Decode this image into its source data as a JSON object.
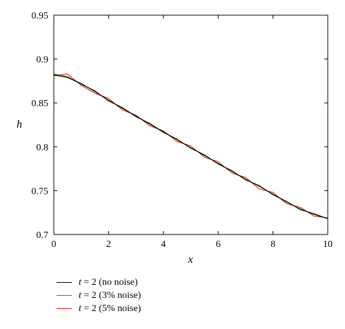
{
  "chart_data": {
    "type": "line",
    "xlabel": "x",
    "ylabel": "h",
    "xlim": [
      0,
      10
    ],
    "ylim": [
      0.7,
      0.95
    ],
    "xticks": [
      "0",
      "2",
      "4",
      "6",
      "8",
      "10"
    ],
    "yticks": [
      "0.7",
      "0.75",
      "0.8",
      "0.85",
      "0.9",
      "0.95"
    ],
    "grid": false,
    "legend_position": "bottom-left, below plot",
    "x": [
      0,
      0.5,
      1,
      1.5,
      2,
      2.5,
      3,
      3.5,
      4,
      4.5,
      5,
      5.5,
      6,
      6.5,
      7,
      7.5,
      8,
      8.5,
      9,
      9.5,
      10
    ],
    "series": [
      {
        "name_var": "t",
        "name_rest": " = 2 (no noise)",
        "color": "#000000",
        "values": [
          0.882,
          0.879,
          0.872,
          0.863,
          0.853,
          0.844,
          0.835,
          0.826,
          0.817,
          0.808,
          0.799,
          0.79,
          0.781,
          0.772,
          0.763,
          0.755,
          0.746,
          0.737,
          0.729,
          0.723,
          0.718
        ]
      },
      {
        "name_var": "t",
        "name_rest": " = 2 (3% noise)",
        "color": "#2e8b2e",
        "values": [
          0.883,
          0.88,
          0.871,
          0.864,
          0.852,
          0.845,
          0.834,
          0.827,
          0.816,
          0.809,
          0.798,
          0.791,
          0.78,
          0.773,
          0.762,
          0.756,
          0.745,
          0.738,
          0.728,
          0.724,
          0.718
        ]
      },
      {
        "name_var": "t",
        "name_rest": " = 2 (5% noise)",
        "color": "#e8221e",
        "values": [
          0.881,
          0.883,
          0.87,
          0.861,
          0.855,
          0.842,
          0.836,
          0.824,
          0.818,
          0.806,
          0.801,
          0.788,
          0.783,
          0.77,
          0.765,
          0.752,
          0.748,
          0.735,
          0.731,
          0.721,
          0.719
        ]
      }
    ]
  }
}
